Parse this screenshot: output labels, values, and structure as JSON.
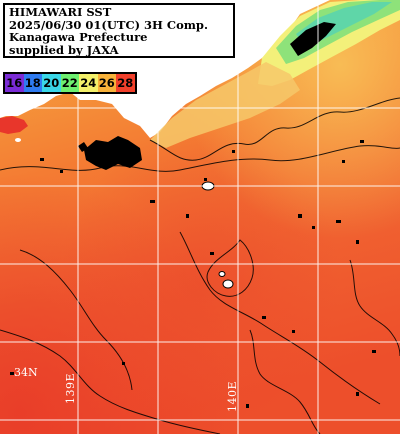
{
  "title": {
    "line1": "HIMAWARI SST",
    "line2": "2025/06/30 01(UTC) 3H Comp.",
    "line3": "Kanagawa Prefecture",
    "line4": "supplied by JAXA"
  },
  "legend": [
    {
      "label": "16",
      "color": "#7b2cd6"
    },
    {
      "label": "18",
      "color": "#2f7bf0"
    },
    {
      "label": "20",
      "color": "#3ad7e8"
    },
    {
      "label": "22",
      "color": "#6ef070"
    },
    {
      "label": "24",
      "color": "#f3f06a"
    },
    {
      "label": "26",
      "color": "#f7b13a"
    },
    {
      "label": "28",
      "color": "#f2402b"
    }
  ],
  "grid_labels": {
    "lat": "34N",
    "lon_left": "139E",
    "lon_right": "140E"
  },
  "colors": {
    "land": "#ffffff",
    "no_data": "#000000",
    "grid": "#ffffff",
    "sea_warm": "#f0552a",
    "sea_mid": "#f47a36",
    "sea_cool": "#f7ab43"
  }
}
